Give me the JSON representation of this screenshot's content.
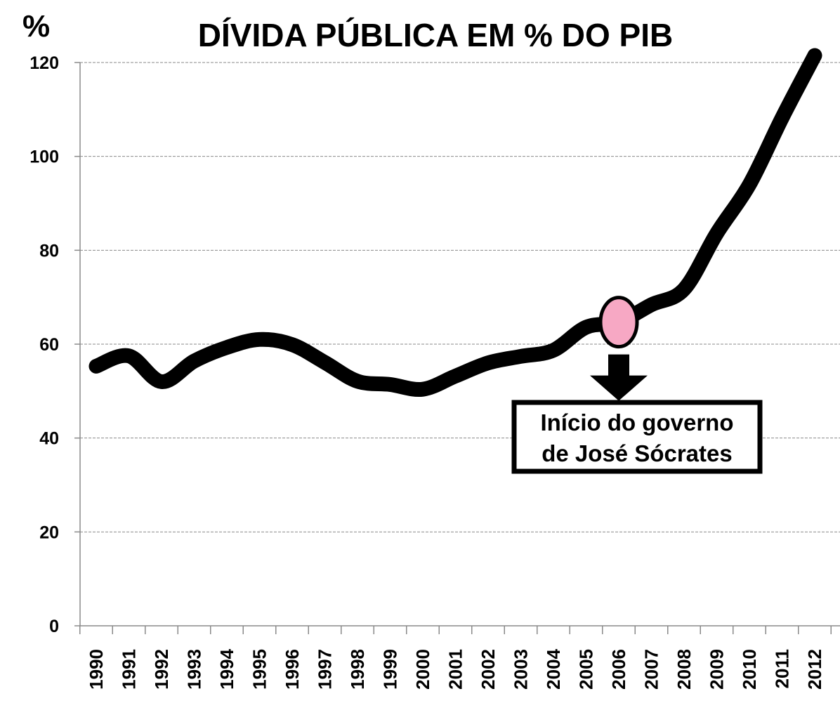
{
  "chart_data": {
    "type": "line",
    "title": "DÍVIDA PÚBLICA EM % DO PIB",
    "ylabel": "%",
    "xlabel": "",
    "ylim": [
      0,
      120
    ],
    "yticks": [
      0,
      20,
      40,
      60,
      80,
      100,
      120
    ],
    "grid": true,
    "categories": [
      "1990",
      "1991",
      "1992",
      "1993",
      "1994",
      "1995",
      "1996",
      "1997",
      "1998",
      "1999",
      "2000",
      "2001",
      "2002",
      "2003",
      "2004",
      "2005",
      "2006",
      "2007",
      "2008",
      "2009",
      "2010",
      "2011",
      "2012"
    ],
    "series": [
      {
        "values": [
          55.3,
          57.5,
          52.0,
          56.4,
          59.3,
          61.0,
          59.9,
          56.1,
          52.1,
          51.4,
          50.4,
          53.2,
          56.0,
          57.4,
          58.7,
          63.6,
          64.7,
          68.4,
          71.7,
          83.6,
          94.0,
          108.2,
          121.5
        ],
        "color": "#000000"
      }
    ],
    "annotation": {
      "lines": [
        "Início do governo",
        "de José Sócrates"
      ],
      "x": "2006",
      "marker_color": "#f7a8c4",
      "arrow_color": "#000000"
    }
  }
}
